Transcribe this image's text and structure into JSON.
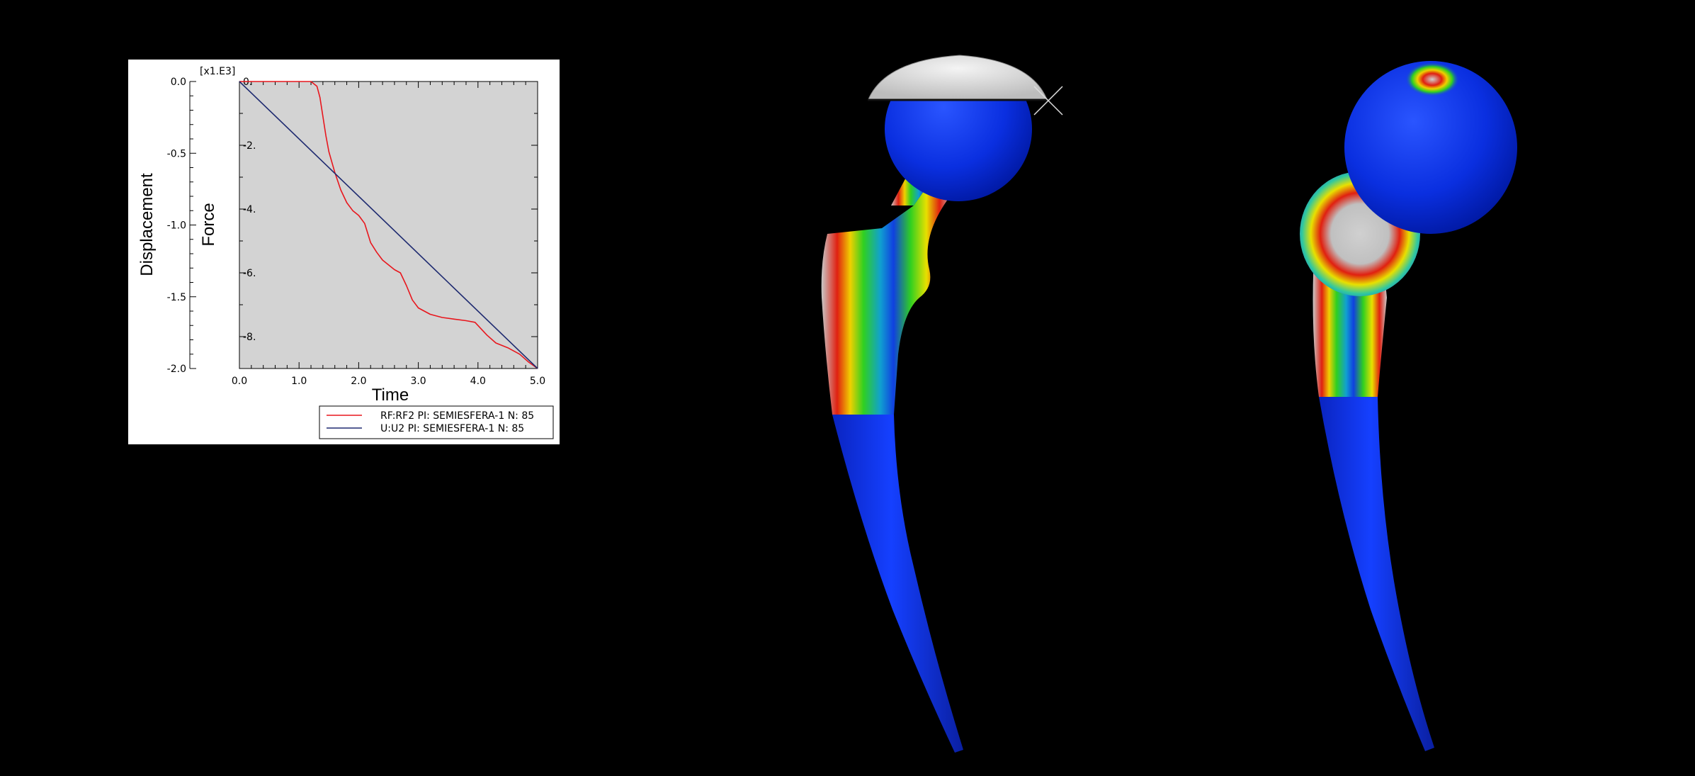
{
  "chart_data": {
    "type": "line",
    "multiplier_label": "[x1.E3]",
    "xlabel": "Time",
    "ylabel_left": "Displacement",
    "ylabel_right": "Force",
    "xlim": [
      0.0,
      5.0
    ],
    "ylim_force": [
      -9.0,
      0.0
    ],
    "ylim_displacement": [
      -2.0,
      0.0
    ],
    "x_ticks": [
      "0.0",
      "1.0",
      "2.0",
      "3.0",
      "4.0",
      "5.0"
    ],
    "force_ticks": [
      {
        "value": 0,
        "label": "0."
      },
      {
        "value": -2,
        "label": "-2."
      },
      {
        "value": -4,
        "label": "-4."
      },
      {
        "value": -6,
        "label": "-6."
      },
      {
        "value": -8,
        "label": "-8."
      }
    ],
    "displacement_ticks": [
      {
        "value": 0.0,
        "label": "0.0"
      },
      {
        "value": -0.5,
        "label": "-0.5"
      },
      {
        "value": -1.0,
        "label": "-1.0"
      },
      {
        "value": -1.5,
        "label": "-1.5"
      },
      {
        "value": -2.0,
        "label": "-2.0"
      }
    ],
    "grid": false,
    "legend_position": "bottom-right",
    "series": [
      {
        "name": "RF:RF2 PI: SEMIESFERA-1 N: 85",
        "color": "#e8161d",
        "axis": "force",
        "x": [
          0.0,
          1.0,
          1.2,
          1.3,
          1.35,
          1.4,
          1.45,
          1.5,
          1.6,
          1.7,
          1.8,
          1.9,
          2.0,
          2.1,
          2.2,
          2.3,
          2.4,
          2.5,
          2.6,
          2.7,
          2.8,
          2.9,
          3.0,
          3.1,
          3.2,
          3.4,
          3.6,
          3.8,
          3.95,
          4.05,
          4.15,
          4.3,
          4.5,
          4.7,
          4.85,
          5.0
        ],
        "y": [
          0.0,
          0.0,
          0.0,
          -0.15,
          -0.5,
          -1.1,
          -1.7,
          -2.2,
          -2.85,
          -3.4,
          -3.8,
          -4.05,
          -4.2,
          -4.45,
          -5.05,
          -5.35,
          -5.6,
          -5.75,
          -5.9,
          -6.0,
          -6.4,
          -6.85,
          -7.1,
          -7.2,
          -7.3,
          -7.4,
          -7.45,
          -7.5,
          -7.55,
          -7.75,
          -7.95,
          -8.2,
          -8.35,
          -8.55,
          -8.8,
          -9.0
        ]
      },
      {
        "name": "U:U2 PI: SEMIESFERA-1 N: 85",
        "color": "#1e2a70",
        "axis": "displacement",
        "x": [
          0.0,
          5.0
        ],
        "y": [
          0.0,
          -2.0
        ]
      }
    ]
  }
}
